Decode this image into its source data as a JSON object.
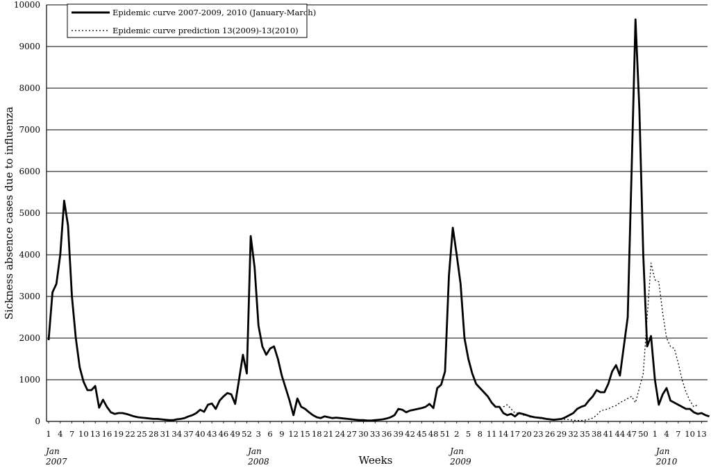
{
  "chart_data": {
    "type": "line",
    "ylabel": "Sickness absence cases due to influenza",
    "xlabel": "Weeks",
    "ylim": [
      0,
      10000
    ],
    "yticks": [
      0,
      1000,
      2000,
      3000,
      4000,
      5000,
      6000,
      7000,
      8000,
      9000,
      10000
    ],
    "grid": "horizontal",
    "legend": "top-left",
    "x_tick_labels": [
      "1",
      "4",
      "7",
      "10",
      "13",
      "16",
      "19",
      "22",
      "25",
      "28",
      "31",
      "34",
      "37",
      "40",
      "43",
      "46",
      "49",
      "52",
      "3",
      "6",
      "9",
      "12",
      "15",
      "18",
      "21",
      "24",
      "27",
      "30",
      "33",
      "36",
      "39",
      "42",
      "45",
      "48",
      "51",
      "2",
      "5",
      "8",
      "11",
      "14",
      "17",
      "20",
      "23",
      "26",
      "29",
      "32",
      "35",
      "38",
      "41",
      "44",
      "47",
      "50",
      "1",
      "4",
      "7",
      "10",
      "13"
    ],
    "year_labels": [
      {
        "month": "Jan",
        "year": "2007",
        "week_index": 0
      },
      {
        "month": "Jan",
        "year": "2008",
        "week_index": 52
      },
      {
        "month": "Jan",
        "year": "2009",
        "week_index": 104
      },
      {
        "month": "Jan",
        "year": "2010",
        "week_index": 157
      }
    ],
    "series": [
      {
        "name": "Epidemic curve 2007-2009, 2010 (January-March)",
        "style": "solid",
        "color": "#000000",
        "start_index": 0,
        "values": [
          1950,
          3100,
          3300,
          4000,
          5300,
          4700,
          3000,
          2000,
          1300,
          950,
          750,
          750,
          850,
          330,
          520,
          350,
          220,
          180,
          200,
          200,
          180,
          150,
          120,
          100,
          90,
          80,
          70,
          60,
          60,
          50,
          40,
          30,
          30,
          50,
          60,
          80,
          120,
          150,
          200,
          280,
          230,
          400,
          430,
          300,
          500,
          600,
          680,
          650,
          420,
          1000,
          1600,
          1150,
          4450,
          3700,
          2300,
          1800,
          1600,
          1750,
          1800,
          1500,
          1100,
          800,
          500,
          150,
          550,
          350,
          300,
          220,
          150,
          100,
          80,
          120,
          100,
          80,
          90,
          80,
          70,
          60,
          50,
          40,
          30,
          30,
          20,
          20,
          30,
          40,
          50,
          70,
          100,
          150,
          300,
          280,
          220,
          260,
          280,
          300,
          320,
          350,
          420,
          320,
          800,
          880,
          1200,
          3500,
          4650,
          4000,
          3300,
          2000,
          1500,
          1150,
          900,
          800,
          700,
          600,
          450,
          350,
          350,
          200,
          150,
          180,
          120,
          200,
          180,
          150,
          120,
          100,
          90,
          80,
          60,
          50,
          40,
          50,
          60,
          100,
          150,
          200,
          300,
          350,
          380,
          500,
          600,
          750,
          700,
          700,
          900,
          1200,
          1350,
          1100,
          1800,
          2500,
          6000,
          9650,
          7500,
          4000,
          1800,
          2050,
          1000,
          400,
          650,
          800,
          500,
          450,
          400,
          350,
          300,
          300,
          220,
          180,
          200,
          150,
          120
        ]
      },
      {
        "name": "Epidemic curve prediction 13(2009)-13(2010)",
        "style": "dotted",
        "color": "#000000",
        "start_index": 117,
        "values": [
          350,
          400,
          300,
          200,
          200,
          150,
          150,
          100,
          100,
          80,
          60,
          50,
          40,
          40,
          40,
          50,
          50,
          40,
          30,
          20,
          20,
          30,
          50,
          80,
          150,
          250,
          280,
          300,
          350,
          380,
          450,
          500,
          550,
          600,
          450,
          800,
          1150,
          2500,
          3800,
          3400,
          3350,
          2600,
          2000,
          1800,
          1750,
          1400,
          1000,
          700,
          500,
          350,
          400
        ]
      }
    ]
  }
}
